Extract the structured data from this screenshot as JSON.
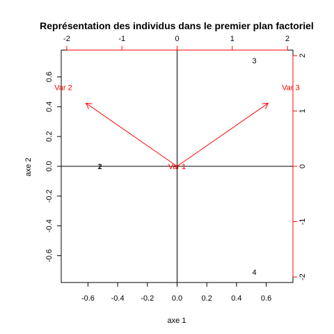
{
  "chart_data": {
    "type": "scatter",
    "title": "Représentation des individus dans le premier plan factoriel",
    "xlabel": "axe 1",
    "ylabel": "axe 2",
    "xlim": [
      -0.78,
      0.78
    ],
    "ylim": [
      -0.78,
      0.78
    ],
    "xticks": [
      "-0.6",
      "-0.4",
      "-0.2",
      "0.0",
      "0.2",
      "0.4",
      "0.6"
    ],
    "yticks": [
      "-0.6",
      "-0.4",
      "-0.2",
      "0.0",
      "0.2",
      "0.4",
      "0.6"
    ],
    "top_axis": {
      "lim": [
        -2.1,
        2.1
      ],
      "ticks": [
        "-2",
        "-1",
        "0",
        "1",
        "2"
      ],
      "color": "#ff0000"
    },
    "right_axis": {
      "lim": [
        -2.1,
        2.1
      ],
      "ticks": [
        "-2",
        "-1",
        "0",
        "1",
        "2"
      ],
      "color": "#ff0000"
    },
    "points": [
      {
        "label": "1",
        "x": -0.52,
        "y": 0.0
      },
      {
        "label": "2",
        "x": -0.52,
        "y": 0.0
      },
      {
        "label": "3",
        "x": 0.52,
        "y": 0.71
      },
      {
        "label": "4",
        "x": 0.52,
        "y": -0.71
      }
    ],
    "arrows": [
      {
        "label": "Var 1",
        "x": 0.0,
        "y": 0.0
      },
      {
        "label": "Var 2",
        "x": -1.65,
        "y": 1.14
      },
      {
        "label": "Var 3",
        "x": 1.65,
        "y": 1.14
      }
    ],
    "arrow_color": "#ff0000"
  }
}
